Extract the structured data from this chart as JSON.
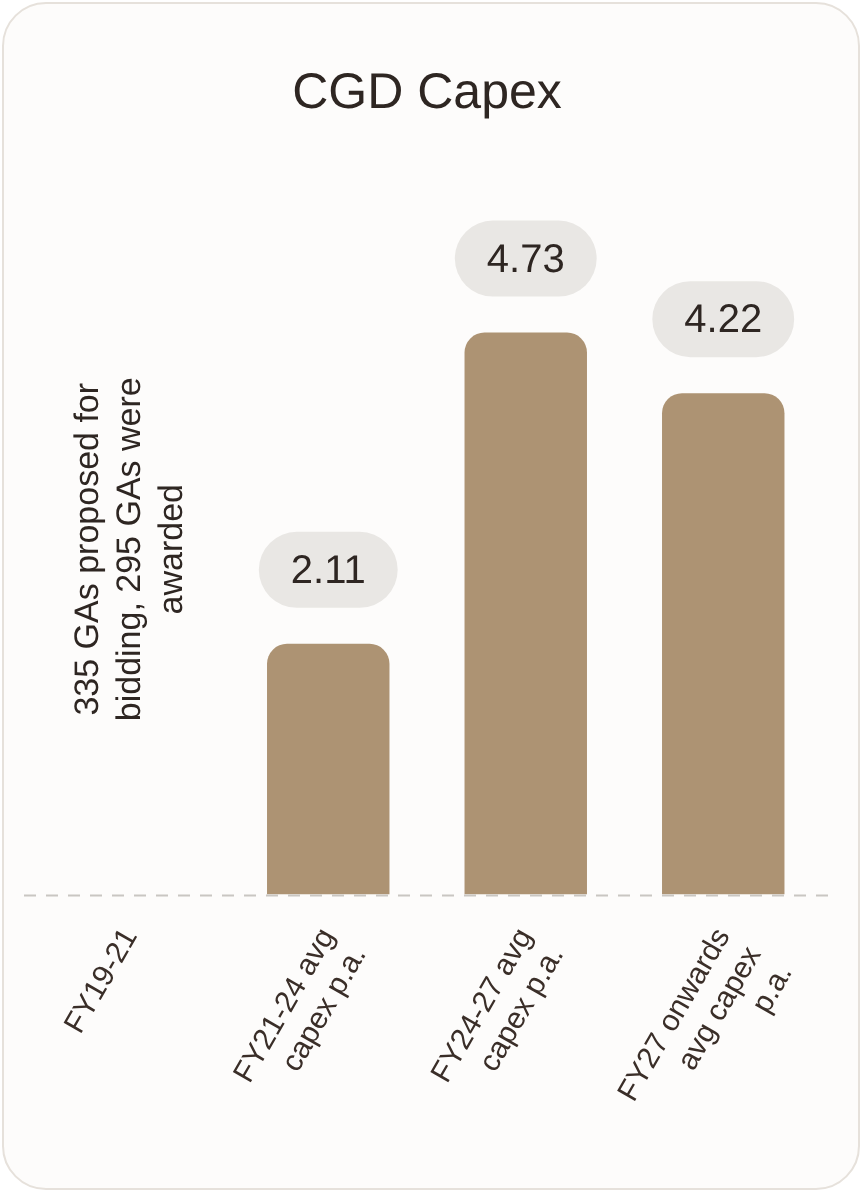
{
  "chart_data": {
    "type": "bar",
    "title": "CGD Capex",
    "categories": [
      "FY19-21",
      "FY21-24 avg capex p.a.",
      "FY24-27 avg capex p.a.",
      "FY27 onwards avg capex p.a."
    ],
    "values": [
      null,
      2.11,
      4.73,
      4.22
    ],
    "color": "#ad9373",
    "data_labels": true,
    "grid": false,
    "legend": false,
    "annotations": [
      "335 GAs proposed for bidding, 295 GAs were awarded"
    ]
  }
}
